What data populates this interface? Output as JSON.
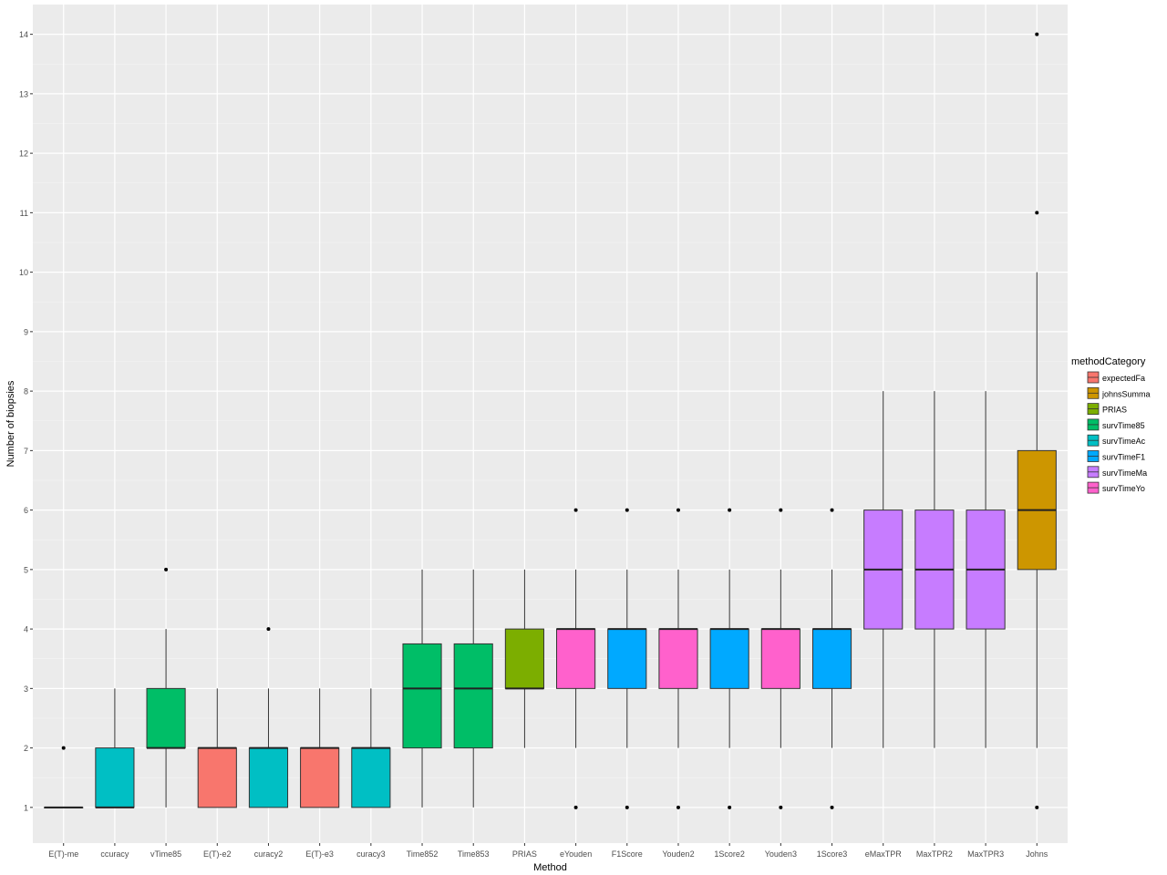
{
  "chart_data": {
    "type": "boxplot",
    "xlabel": "Method",
    "ylabel": "Number of biopsies",
    "ylim": [
      0.4,
      14.5
    ],
    "yticks": [
      1,
      2,
      3,
      4,
      5,
      6,
      7,
      8,
      9,
      10,
      11,
      12,
      13,
      14
    ],
    "grid": true,
    "legend_title": "methodCategory",
    "legend_position": "right",
    "categories_legend": [
      {
        "name": "expectedFa",
        "color": "#F8766D"
      },
      {
        "name": "johnsSumma",
        "color": "#CD9600"
      },
      {
        "name": "PRIAS",
        "color": "#7CAE00"
      },
      {
        "name": "survTime85",
        "color": "#00BE67"
      },
      {
        "name": "survTimeAc",
        "color": "#00BFC4"
      },
      {
        "name": "survTimeF1",
        "color": "#00A9FF"
      },
      {
        "name": "survTimeMa",
        "color": "#C77CFF"
      },
      {
        "name": "survTimeYo",
        "color": "#FF61CC"
      }
    ],
    "boxes": [
      {
        "label": "E(T)-me",
        "category": "expectedFa",
        "whisker_low": 1,
        "q1": 1,
        "median": 1,
        "q3": 1,
        "whisker_high": 1,
        "outliers": [
          2
        ]
      },
      {
        "label": "ccuracy",
        "category": "survTimeAc",
        "whisker_low": 1,
        "q1": 1,
        "median": 1,
        "q3": 2,
        "whisker_high": 3,
        "outliers": []
      },
      {
        "label": "vTime85",
        "category": "survTime85",
        "whisker_low": 1,
        "q1": 2,
        "median": 2,
        "q3": 3,
        "whisker_high": 4,
        "outliers": [
          5
        ]
      },
      {
        "label": "E(T)-e2",
        "category": "expectedFa",
        "whisker_low": 1,
        "q1": 1,
        "median": 2,
        "q3": 2,
        "whisker_high": 3,
        "outliers": []
      },
      {
        "label": "curacy2",
        "category": "survTimeAc",
        "whisker_low": 1,
        "q1": 1,
        "median": 2,
        "q3": 2,
        "whisker_high": 3,
        "outliers": [
          4
        ]
      },
      {
        "label": "E(T)-e3",
        "category": "expectedFa",
        "whisker_low": 1,
        "q1": 1,
        "median": 2,
        "q3": 2,
        "whisker_high": 3,
        "outliers": []
      },
      {
        "label": "curacy3",
        "category": "survTimeAc",
        "whisker_low": 1,
        "q1": 1,
        "median": 2,
        "q3": 2,
        "whisker_high": 3,
        "outliers": []
      },
      {
        "label": "Time852",
        "category": "survTime85",
        "whisker_low": 1,
        "q1": 2,
        "median": 3,
        "q3": 3.75,
        "whisker_high": 5,
        "outliers": []
      },
      {
        "label": "Time853",
        "category": "survTime85",
        "whisker_low": 1,
        "q1": 2,
        "median": 3,
        "q3": 3.75,
        "whisker_high": 5,
        "outliers": []
      },
      {
        "label": "PRIAS",
        "category": "PRIAS",
        "whisker_low": 2,
        "q1": 3,
        "median": 3,
        "q3": 4,
        "whisker_high": 5,
        "outliers": []
      },
      {
        "label": "eYouden",
        "category": "survTimeYo",
        "whisker_low": 2,
        "q1": 3,
        "median": 4,
        "q3": 4,
        "whisker_high": 5,
        "outliers": [
          1,
          6
        ]
      },
      {
        "label": "F1Score",
        "category": "survTimeF1",
        "whisker_low": 2,
        "q1": 3,
        "median": 4,
        "q3": 4,
        "whisker_high": 5,
        "outliers": [
          1,
          6
        ]
      },
      {
        "label": "Youden2",
        "category": "survTimeYo",
        "whisker_low": 2,
        "q1": 3,
        "median": 4,
        "q3": 4,
        "whisker_high": 5,
        "outliers": [
          1,
          6
        ]
      },
      {
        "label": "1Score2",
        "category": "survTimeF1",
        "whisker_low": 2,
        "q1": 3,
        "median": 4,
        "q3": 4,
        "whisker_high": 5,
        "outliers": [
          1,
          6
        ]
      },
      {
        "label": "Youden3",
        "category": "survTimeYo",
        "whisker_low": 2,
        "q1": 3,
        "median": 4,
        "q3": 4,
        "whisker_high": 5,
        "outliers": [
          1,
          6
        ]
      },
      {
        "label": "1Score3",
        "category": "survTimeF1",
        "whisker_low": 2,
        "q1": 3,
        "median": 4,
        "q3": 4,
        "whisker_high": 5,
        "outliers": [
          1,
          6
        ]
      },
      {
        "label": "eMaxTPR",
        "category": "survTimeMa",
        "whisker_low": 2,
        "q1": 4,
        "median": 5,
        "q3": 6,
        "whisker_high": 8,
        "outliers": []
      },
      {
        "label": "MaxTPR2",
        "category": "survTimeMa",
        "whisker_low": 2,
        "q1": 4,
        "median": 5,
        "q3": 6,
        "whisker_high": 8,
        "outliers": []
      },
      {
        "label": "MaxTPR3",
        "category": "survTimeMa",
        "whisker_low": 2,
        "q1": 4,
        "median": 5,
        "q3": 6,
        "whisker_high": 8,
        "outliers": []
      },
      {
        "label": "Johns",
        "category": "johnsSumma",
        "whisker_low": 2,
        "q1": 5,
        "median": 6,
        "q3": 7,
        "whisker_high": 10,
        "outliers": [
          1,
          11,
          14
        ]
      }
    ]
  }
}
